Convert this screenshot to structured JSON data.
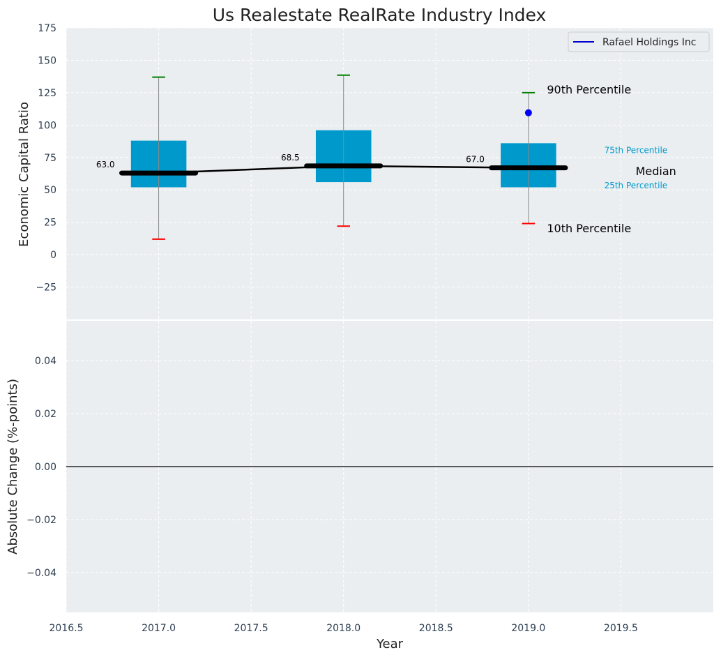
{
  "colors": {
    "panel_bg": "#eaeef0",
    "grid": "#ffffff",
    "box": "#0099cc",
    "whisker": "#888888",
    "p90_cap": "#008000",
    "p10_cap": "#ff0000",
    "median_line": "#000000",
    "company_dot": "#0000ff",
    "pct_text": "#0099cc",
    "zero_line": "#000000"
  },
  "chart_data": [
    {
      "type": "box",
      "title": "Us Realestate RealRate Industry Index",
      "xlabel": "",
      "ylabel": "Economic Capital Ratio",
      "xlim": [
        2016.5,
        2020.0
      ],
      "ylim": [
        -50,
        175
      ],
      "xticks": [
        2016.5,
        2017.0,
        2017.5,
        2018.0,
        2018.5,
        2019.0,
        2019.5
      ],
      "xtick_labels": [
        "2016.5",
        "2017.0",
        "2017.5",
        "2018.0",
        "2018.5",
        "2019.0",
        "2019.5"
      ],
      "yticks": [
        -25,
        0,
        25,
        50,
        75,
        100,
        125,
        150,
        175
      ],
      "ytick_labels": [
        "−25",
        "0",
        "25",
        "50",
        "75",
        "100",
        "125",
        "150",
        "175"
      ],
      "grid": true,
      "boxes": [
        {
          "year": 2017,
          "p10": 12,
          "p25": 52,
          "median": 63.0,
          "median_label": "63.0",
          "p75": 88,
          "p90": 137
        },
        {
          "year": 2018,
          "p10": 22,
          "p25": 56,
          "median": 68.5,
          "median_label": "68.5",
          "p75": 96,
          "p90": 138.5
        },
        {
          "year": 2019,
          "p10": 24,
          "p25": 52,
          "median": 67.0,
          "median_label": "67.0",
          "p75": 86,
          "p90": 125
        }
      ],
      "median_trend": [
        {
          "x": 2017,
          "y": 63.0
        },
        {
          "x": 2018,
          "y": 68.5
        },
        {
          "x": 2019,
          "y": 67.0
        }
      ],
      "company_points": [
        {
          "x": 2019,
          "y": 109.5
        }
      ],
      "legend": {
        "label": "Rafael Holdings Inc",
        "position": "top-right"
      },
      "annotations": {
        "p90": {
          "text": "90th Percentile",
          "x": 2019.1,
          "y": 127
        },
        "p75": {
          "text": "75th Percentile",
          "x": 2019.41,
          "y": 81
        },
        "median": {
          "text": "Median",
          "x": 2019.58,
          "y": 64
        },
        "p25": {
          "text": "25th Percentile",
          "x": 2019.41,
          "y": 54
        },
        "p10": {
          "text": "10th Percentile",
          "x": 2019.1,
          "y": 20
        }
      }
    },
    {
      "type": "line",
      "title": "",
      "xlabel": "Year",
      "ylabel": "Absolute Change (%-points)",
      "xlim": [
        2016.5,
        2020.0
      ],
      "ylim": [
        -0.055,
        0.055
      ],
      "xticks": [
        2016.5,
        2017.0,
        2017.5,
        2018.0,
        2018.5,
        2019.0,
        2019.5
      ],
      "xtick_labels": [
        "2016.5",
        "2017.0",
        "2017.5",
        "2018.0",
        "2018.5",
        "2019.0",
        "2019.5"
      ],
      "yticks": [
        -0.04,
        -0.02,
        0.0,
        0.02,
        0.04
      ],
      "ytick_labels": [
        "−0.04",
        "−0.02",
        "0.00",
        "0.02",
        "0.04"
      ],
      "grid": true,
      "reference_line": 0.0,
      "series": []
    }
  ]
}
